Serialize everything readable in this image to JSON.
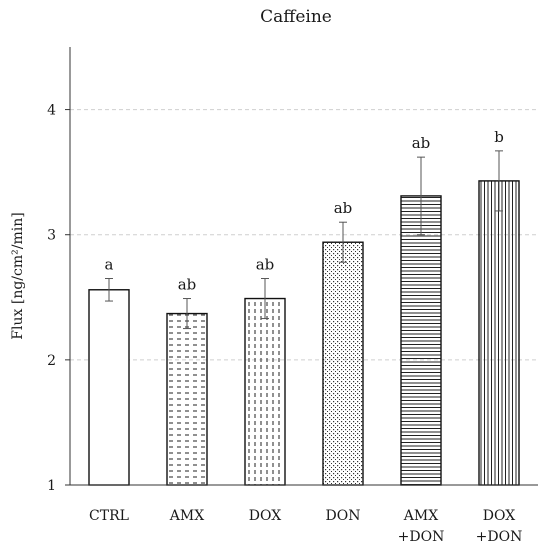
{
  "chart_data": {
    "type": "bar",
    "title": "Caffeine",
    "ylabel": "Flux [ng/cm²/min]",
    "xlabel": "",
    "ylim": [
      1,
      4.5
    ],
    "yticks": [
      1,
      2,
      3,
      4
    ],
    "grid": "horizontal dashed",
    "categories": [
      {
        "line1": "CTRL",
        "line2": ""
      },
      {
        "line1": "AMX",
        "line2": ""
      },
      {
        "line1": "DOX",
        "line2": ""
      },
      {
        "line1": "DON",
        "line2": ""
      },
      {
        "line1": "AMX",
        "line2": "+DON"
      },
      {
        "line1": "DOX",
        "line2": "+DON"
      }
    ],
    "values": [
      2.56,
      2.37,
      2.49,
      2.94,
      3.31,
      3.43
    ],
    "errors": [
      0.09,
      0.12,
      0.16,
      0.16,
      0.31,
      0.24
    ],
    "letters": [
      "a",
      "ab",
      "ab",
      "ab",
      "ab",
      "b"
    ],
    "patterns": [
      "none",
      "dash-rows",
      "dashed-vertical",
      "dots",
      "horizontal-lines",
      "vertical-lines"
    ]
  }
}
